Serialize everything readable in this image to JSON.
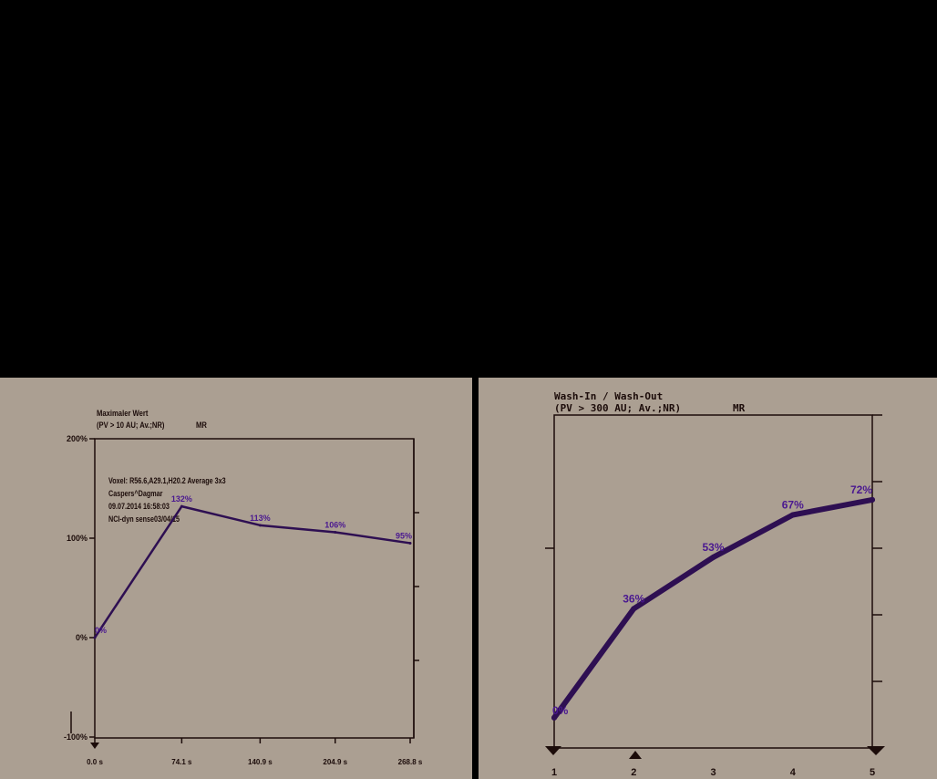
{
  "colors": {
    "background": "#ab9f92",
    "frame": "#1c0c0a",
    "series": "#2e0f52",
    "data_label": "#4a1890",
    "outside": "#000000"
  },
  "chart_data": [
    {
      "type": "line",
      "title": "Maximaler Wert",
      "subtitle": "(PV > 10 AU; Av.;NR)",
      "modality": "MR",
      "info": [
        "Voxel: R56.6,A29.1,H20.2 Average 3x3",
        "Caspers^Dagmar",
        "09.07.2014 16:58:03",
        "NCI-dyn sense03/04/15"
      ],
      "x": [
        0.0,
        74.1,
        140.9,
        204.9,
        268.8
      ],
      "x_tick_labels": [
        "0.0 s",
        "74.1 s",
        "140.9 s",
        "204.9 s",
        "268.8 s"
      ],
      "y_tick_labels": [
        "200%",
        "100%",
        "0%",
        "-100%"
      ],
      "y_tick_values": [
        200,
        100,
        0,
        -100
      ],
      "ylim": [
        -100,
        200
      ],
      "series": [
        {
          "values": [
            0,
            132,
            113,
            106,
            95
          ],
          "labels": [
            "0%",
            "132%",
            "113%",
            "106%",
            "95%"
          ]
        }
      ],
      "grid": false
    },
    {
      "type": "line",
      "title": "Wash-In / Wash-Out",
      "subtitle": "(PV > 300 AU; Av.;NR)",
      "modality": "MR",
      "x": [
        1,
        2,
        3,
        4,
        5
      ],
      "x_tick_labels": [
        "1",
        "2",
        "3",
        "4",
        "5"
      ],
      "ylim": [
        -10,
        100
      ],
      "series": [
        {
          "values": [
            0,
            36,
            53,
            67,
            72
          ],
          "labels": [
            "0%",
            "36%",
            "53%",
            "67%",
            "72%"
          ]
        }
      ],
      "grid": false
    }
  ]
}
